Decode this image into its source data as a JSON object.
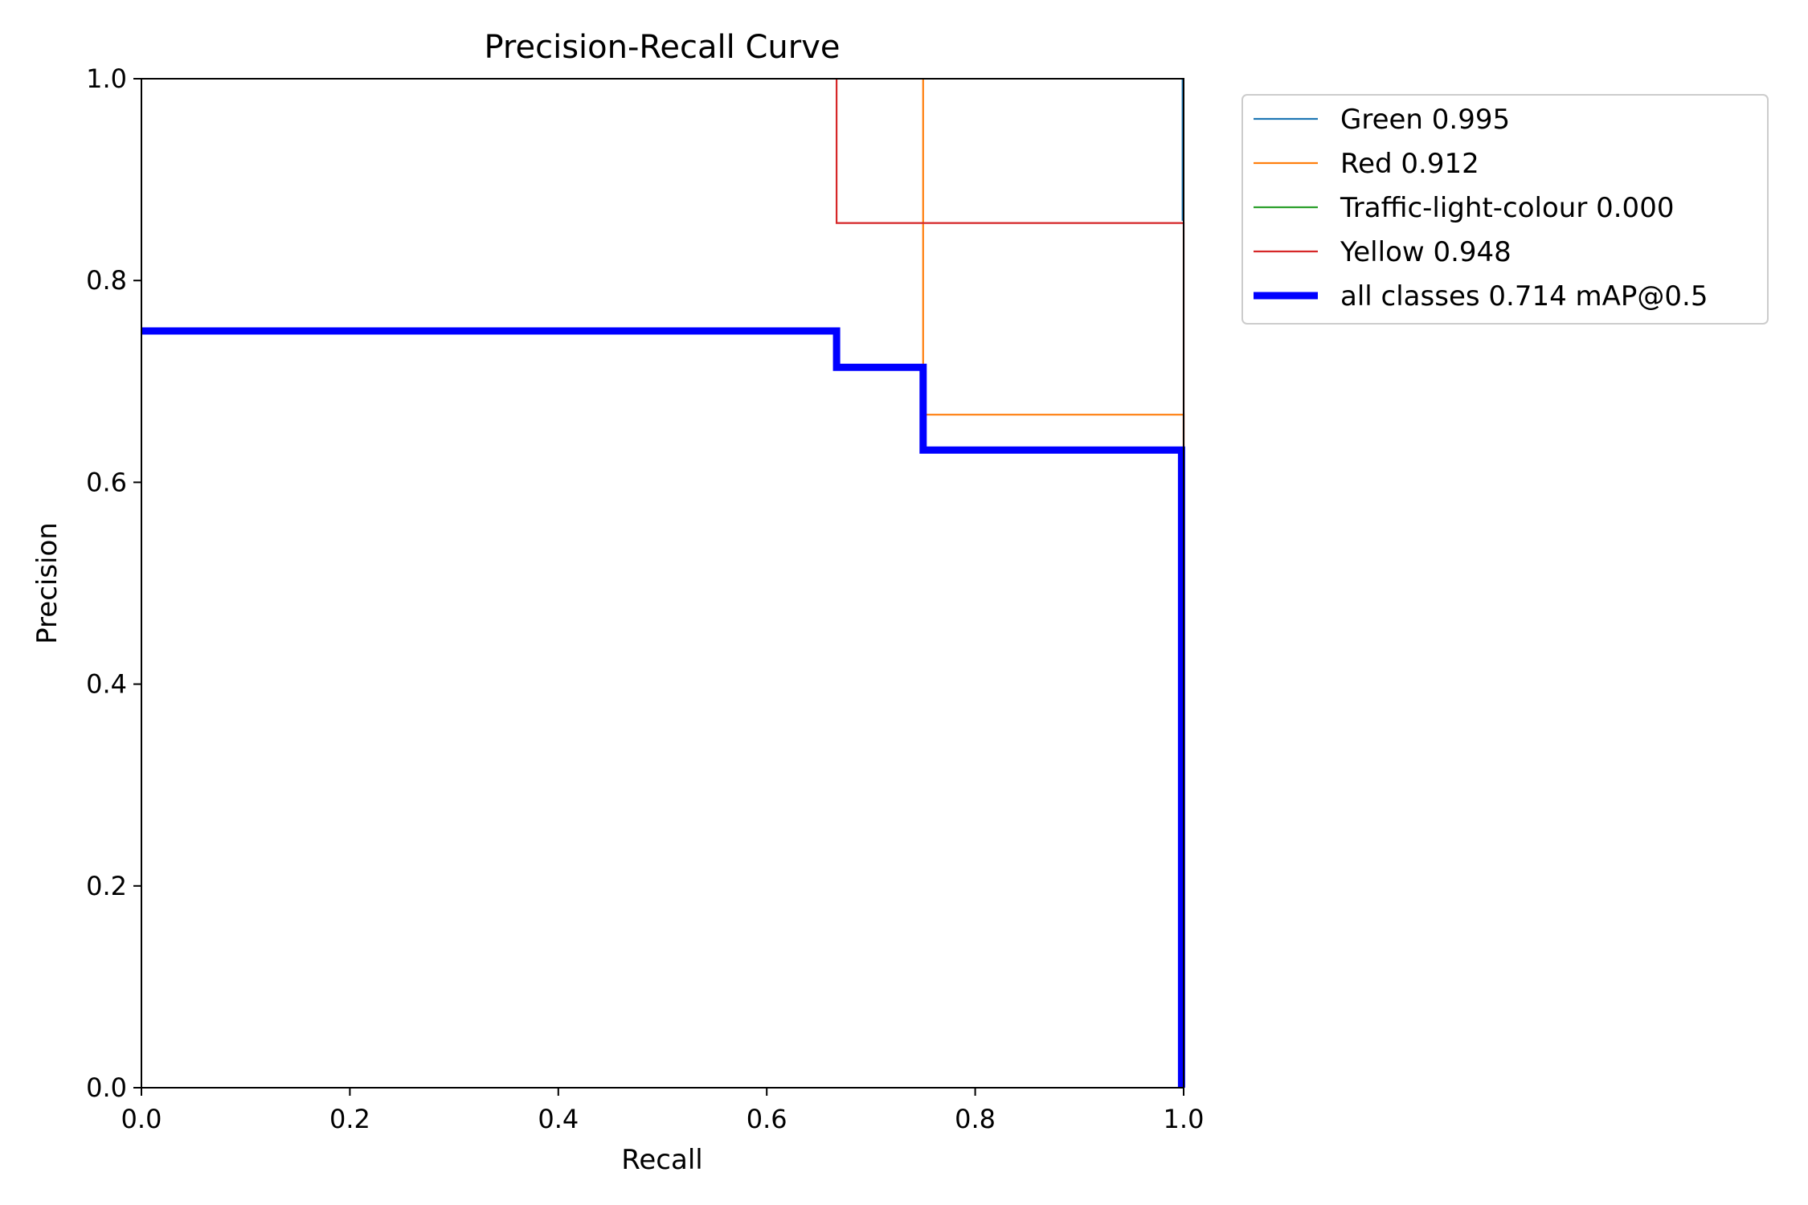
{
  "chart_data": {
    "type": "line",
    "title": "Precision-Recall Curve",
    "xlabel": "Recall",
    "ylabel": "Precision",
    "xlim": [
      0.0,
      1.0
    ],
    "ylim": [
      0.0,
      1.0
    ],
    "xticks": [
      "0.0",
      "0.2",
      "0.4",
      "0.6",
      "0.8",
      "1.0"
    ],
    "yticks": [
      "0.0",
      "0.2",
      "0.4",
      "0.6",
      "0.8",
      "1.0"
    ],
    "grid": false,
    "legend_position": "outside-upper-right",
    "series": [
      {
        "name": "Green 0.995",
        "color": "#1f77b4",
        "width": "thin",
        "x": [
          0.999,
          0.999,
          1.0
        ],
        "y": [
          1.0,
          0.86,
          0.86
        ]
      },
      {
        "name": "Red 0.912",
        "color": "#ff7f0e",
        "width": "thin",
        "x": [
          0.75,
          0.75,
          0.75,
          1.0,
          1.0
        ],
        "y": [
          1.0,
          0.714,
          0.667,
          0.667,
          0.0
        ]
      },
      {
        "name": "Traffic-light-colour 0.000",
        "color": "#2ca02c",
        "width": "thin",
        "x": [],
        "y": []
      },
      {
        "name": "Yellow 0.948",
        "color": "#d62728",
        "width": "thin",
        "x": [
          0.667,
          0.667,
          1.0,
          1.0
        ],
        "y": [
          1.0,
          0.857,
          0.857,
          0.0
        ]
      },
      {
        "name": "all classes 0.714 mAP@0.5",
        "color": "#0000ff",
        "width": "thick",
        "x": [
          0.0,
          0.667,
          0.667,
          0.75,
          0.75,
          0.998,
          0.998
        ],
        "y": [
          0.75,
          0.75,
          0.714,
          0.714,
          0.632,
          0.632,
          0.0
        ]
      }
    ]
  }
}
